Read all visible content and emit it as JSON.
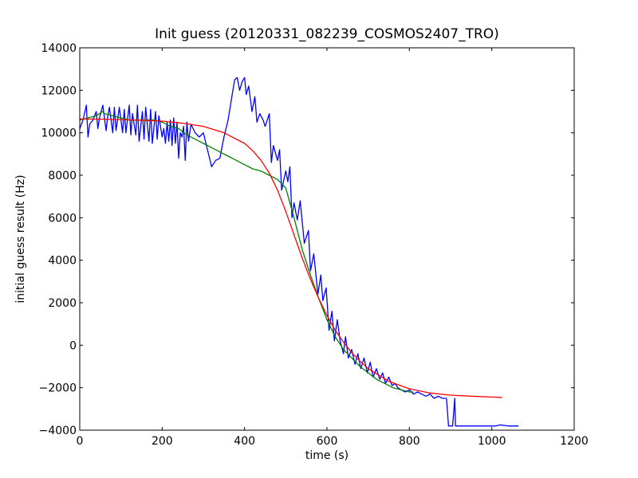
{
  "chart_data": {
    "type": "line",
    "title": "Init guess (20120331_082239_COSMOS2407_TRO)",
    "xlabel": "time (s)",
    "ylabel": "initial guess result (Hz)",
    "xlim": [
      0,
      1200
    ],
    "ylim": [
      -4000,
      14000
    ],
    "xticks": [
      0,
      200,
      400,
      600,
      800,
      1000,
      1200
    ],
    "yticks": [
      -4000,
      -2000,
      0,
      2000,
      4000,
      6000,
      8000,
      10000,
      12000,
      14000
    ],
    "grid": false,
    "legend": "none",
    "series": [
      {
        "color": "#0000ff",
        "x": [
          0,
          8,
          16,
          20,
          24,
          32,
          40,
          44,
          48,
          56,
          64,
          68,
          72,
          80,
          84,
          88,
          96,
          104,
          108,
          112,
          120,
          124,
          128,
          136,
          140,
          144,
          152,
          156,
          160,
          168,
          172,
          176,
          184,
          188,
          192,
          200,
          204,
          208,
          212,
          216,
          220,
          224,
          228,
          232,
          236,
          240,
          244,
          248,
          252,
          256,
          260,
          264,
          270,
          280,
          290,
          300,
          310,
          320,
          330,
          340,
          350,
          360,
          370,
          376,
          382,
          388,
          394,
          400,
          404,
          410,
          418,
          425,
          430,
          437,
          445,
          450,
          460,
          465,
          470,
          480,
          485,
          490,
          500,
          505,
          510,
          515,
          520,
          528,
          535,
          545,
          555,
          560,
          568,
          578,
          585,
          590,
          598,
          605,
          612,
          618,
          625,
          632,
          640,
          645,
          652,
          660,
          668,
          675,
          682,
          690,
          698,
          705,
          712,
          720,
          728,
          735,
          742,
          750,
          758,
          765,
          772,
          780,
          790,
          800,
          810,
          820,
          830,
          840,
          850,
          860,
          870,
          880,
          890,
          895,
          905,
          910,
          912,
          915,
          920,
          930,
          950,
          980,
          1000,
          1010,
          1020,
          1040,
          1065
        ],
        "y": [
          10200,
          10600,
          11300,
          9800,
          10400,
          10600,
          11000,
          10200,
          10700,
          11300,
          10100,
          10800,
          11200,
          10000,
          11200,
          10100,
          11200,
          10000,
          11100,
          10000,
          11300,
          9900,
          10900,
          9900,
          11300,
          9600,
          11000,
          9700,
          11200,
          9600,
          11100,
          9500,
          11000,
          9700,
          10800,
          9800,
          10200,
          9500,
          10500,
          9600,
          10600,
          9400,
          10700,
          9500,
          10500,
          8800,
          10000,
          9800,
          10300,
          8700,
          10500,
          9600,
          10400,
          10000,
          9800,
          10000,
          9200,
          8400,
          8700,
          8800,
          9800,
          10600,
          11800,
          12500,
          12600,
          12000,
          12400,
          12600,
          11800,
          12200,
          11000,
          11700,
          10500,
          10900,
          10600,
          10300,
          10900,
          8600,
          9400,
          8700,
          9200,
          7300,
          8200,
          7700,
          8400,
          6000,
          6700,
          5900,
          6800,
          4800,
          5400,
          3500,
          4300,
          2400,
          3300,
          2100,
          2700,
          700,
          1600,
          200,
          1200,
          200,
          -400,
          400,
          -600,
          -200,
          -900,
          -400,
          -1100,
          -600,
          -1300,
          -800,
          -1500,
          -1100,
          -1600,
          -1300,
          -1800,
          -1500,
          -1900,
          -1800,
          -2000,
          -2100,
          -2200,
          -2100,
          -2300,
          -2200,
          -2300,
          -2400,
          -2300,
          -2500,
          -2400,
          -2500,
          -2500,
          -3800,
          -3800,
          -2500,
          -3800,
          -3800,
          -3800,
          -3800,
          -3800,
          -3800,
          -3800,
          -3800,
          -3750,
          -3800,
          -3800
        ]
      },
      {
        "color": "#008000",
        "x": [
          0,
          20,
          40,
          55,
          60,
          80,
          100,
          120,
          140,
          160,
          180,
          200,
          220,
          240,
          260,
          280,
          300,
          320,
          340,
          360,
          380,
          400,
          420,
          440,
          460,
          480,
          500,
          520,
          540,
          560,
          580,
          600,
          620,
          640,
          660,
          680,
          700,
          720,
          740,
          760,
          780,
          800,
          810
        ],
        "y": [
          10600,
          10700,
          10800,
          11000,
          10900,
          10800,
          10700,
          10600,
          10600,
          10600,
          10600,
          10500,
          10300,
          10200,
          9900,
          9700,
          9500,
          9300,
          9100,
          8900,
          8700,
          8500,
          8300,
          8200,
          8000,
          7800,
          7400,
          6000,
          4500,
          3300,
          2200,
          1200,
          400,
          -200,
          -600,
          -1000,
          -1300,
          -1600,
          -1800,
          -2000,
          -2100,
          -2200,
          -2200
        ]
      },
      {
        "color": "#ff0000",
        "x": [
          0,
          50,
          100,
          150,
          200,
          250,
          300,
          350,
          400,
          420,
          440,
          460,
          480,
          500,
          520,
          540,
          560,
          580,
          600,
          620,
          640,
          660,
          680,
          700,
          750,
          800,
          850,
          900,
          950,
          1000,
          1025
        ],
        "y": [
          10650,
          10640,
          10620,
          10590,
          10550,
          10450,
          10300,
          10000,
          9500,
          9150,
          8700,
          8100,
          7300,
          6300,
          5200,
          4100,
          3100,
          2200,
          1400,
          700,
          150,
          -350,
          -750,
          -1100,
          -1700,
          -2050,
          -2250,
          -2350,
          -2400,
          -2440,
          -2460
        ]
      }
    ]
  }
}
